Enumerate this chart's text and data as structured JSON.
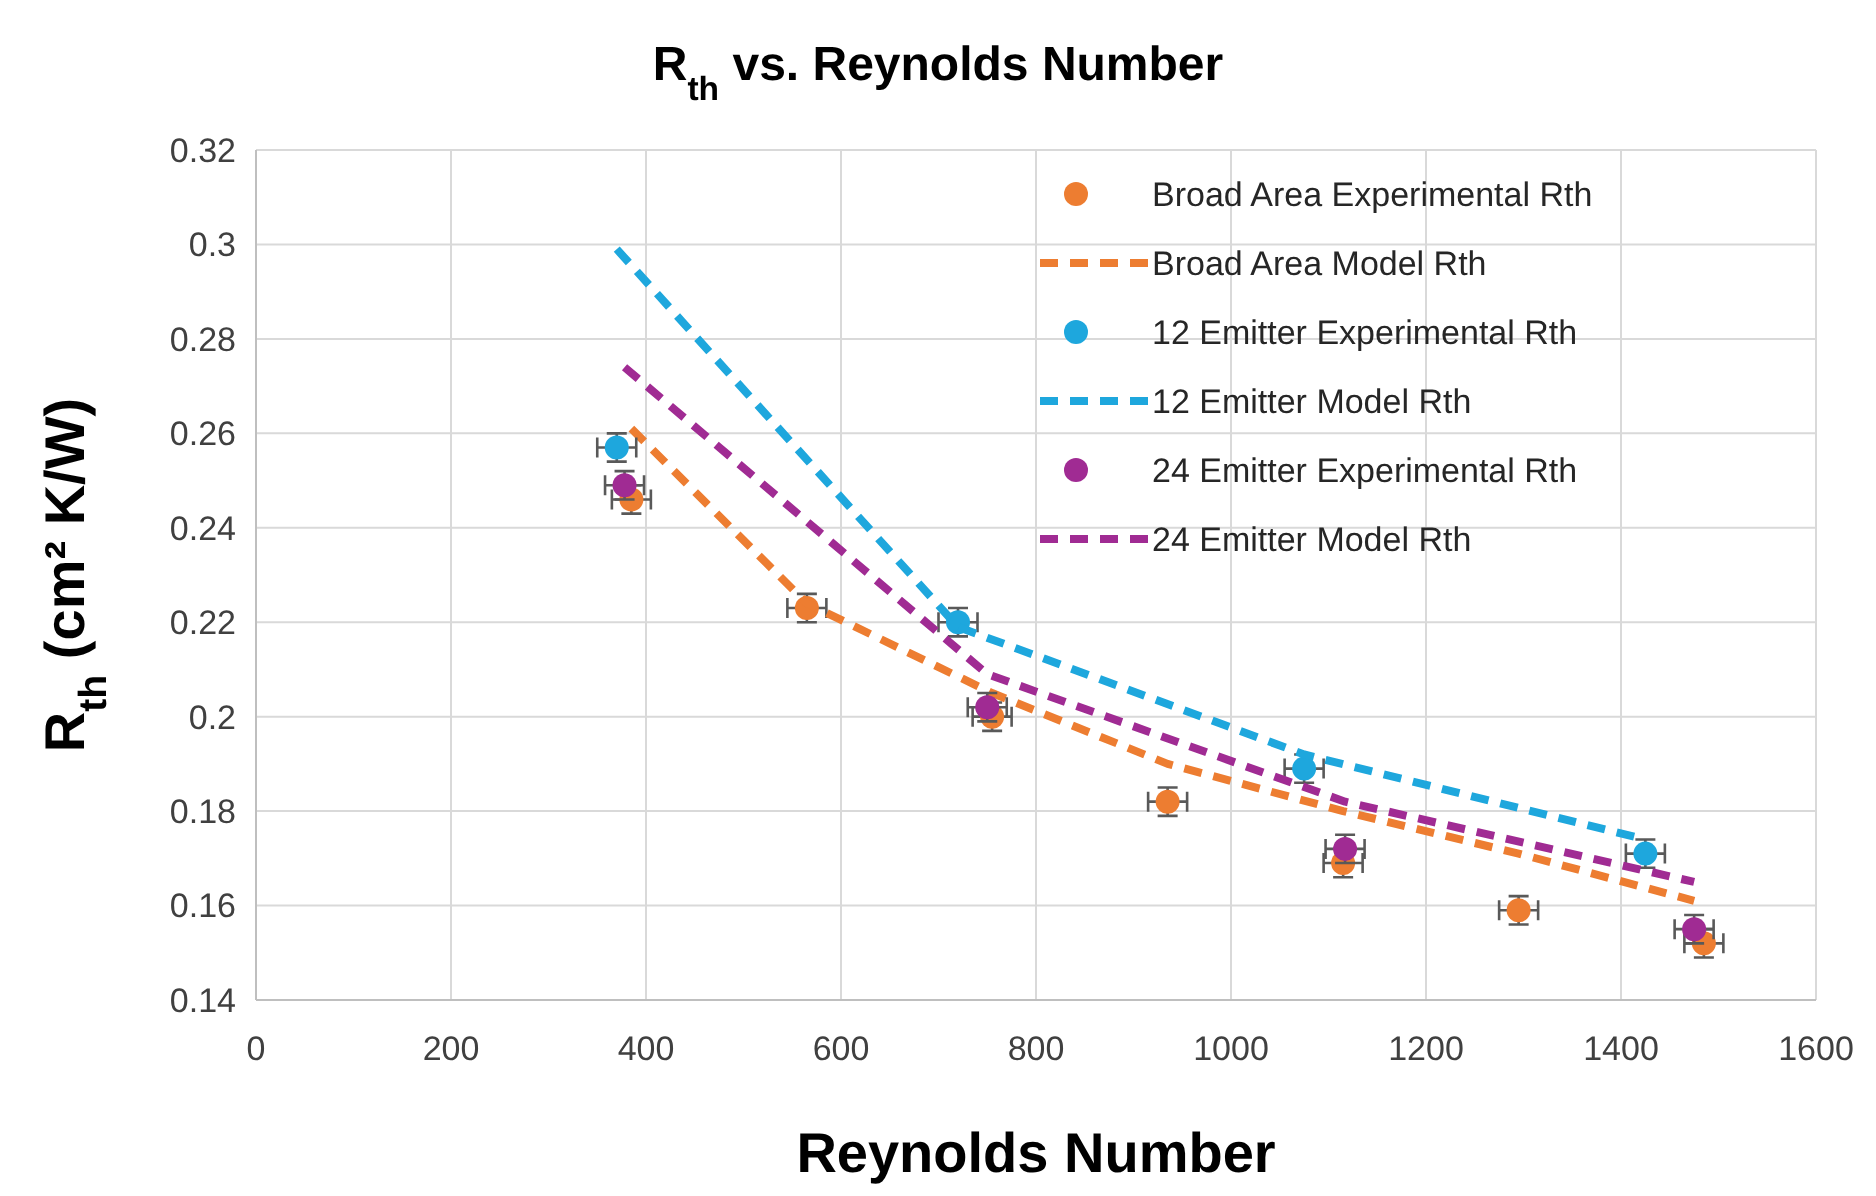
{
  "chart_data": {
    "type": "scatter",
    "title": "R$_{th}$ vs. Reynolds Number",
    "xlabel": "Reynolds Number",
    "ylabel": "R$_{th}$ (cm² K/W)",
    "xlim": [
      0,
      1600
    ],
    "xticks": [
      0,
      200,
      400,
      600,
      800,
      1000,
      1200,
      1400,
      1600
    ],
    "ylim": [
      0.14,
      0.32
    ],
    "yticks": [
      0.14,
      0.16,
      0.18,
      0.2,
      0.22,
      0.24,
      0.26,
      0.28,
      0.3,
      0.32
    ],
    "grid": true,
    "legend": "top right",
    "series": [
      {
        "name": "Broad Area Experimental Rth",
        "marker": "circle",
        "color": "#ed7d31",
        "x": [
          385,
          565,
          755,
          935,
          1115,
          1295,
          1485
        ],
        "values": [
          0.246,
          0.223,
          0.2,
          0.182,
          0.169,
          0.159,
          0.152
        ],
        "errors": [
          0.003,
          0.003,
          0.003,
          0.003,
          0.003,
          0.003,
          0.003
        ],
        "xerrors": [
          20,
          20,
          20,
          20,
          20,
          20,
          20
        ]
      },
      {
        "name": "Broad Area Model Rth",
        "type": "line",
        "line_style": "dashed",
        "color": "#ed7d31",
        "x": [
          385,
          565,
          755,
          935,
          1115,
          1295,
          1475
        ],
        "values": [
          0.261,
          0.224,
          0.205,
          0.19,
          0.18,
          0.171,
          0.161
        ]
      },
      {
        "name": "12 Emitter Experimental Rth",
        "marker": "circle",
        "color": "#1ea7dd",
        "x": [
          370,
          720,
          1075,
          1425
        ],
        "values": [
          0.257,
          0.22,
          0.189,
          0.171
        ],
        "errors": [
          0.003,
          0.003,
          0.003,
          0.003
        ],
        "xerrors": [
          20,
          20,
          20,
          20
        ]
      },
      {
        "name": "12 Emitter Model Rth",
        "type": "line",
        "line_style": "dashed",
        "color": "#1ea7dd",
        "x": [
          370,
          720,
          1075,
          1425
        ],
        "values": [
          0.299,
          0.219,
          0.192,
          0.174
        ]
      },
      {
        "name": "24 Emitter Experimental Rth",
        "marker": "circle",
        "color": "#a02b93",
        "x": [
          378,
          750,
          1117,
          1475
        ],
        "values": [
          0.249,
          0.202,
          0.172,
          0.155
        ],
        "errors": [
          0.003,
          0.003,
          0.003,
          0.003
        ],
        "xerrors": [
          20,
          20,
          20,
          20
        ]
      },
      {
        "name": "24 Emitter Model Rth",
        "type": "line",
        "line_style": "dashed",
        "color": "#a02b93",
        "x": [
          378,
          750,
          1117,
          1475
        ],
        "values": [
          0.274,
          0.209,
          0.182,
          0.165
        ]
      }
    ]
  }
}
